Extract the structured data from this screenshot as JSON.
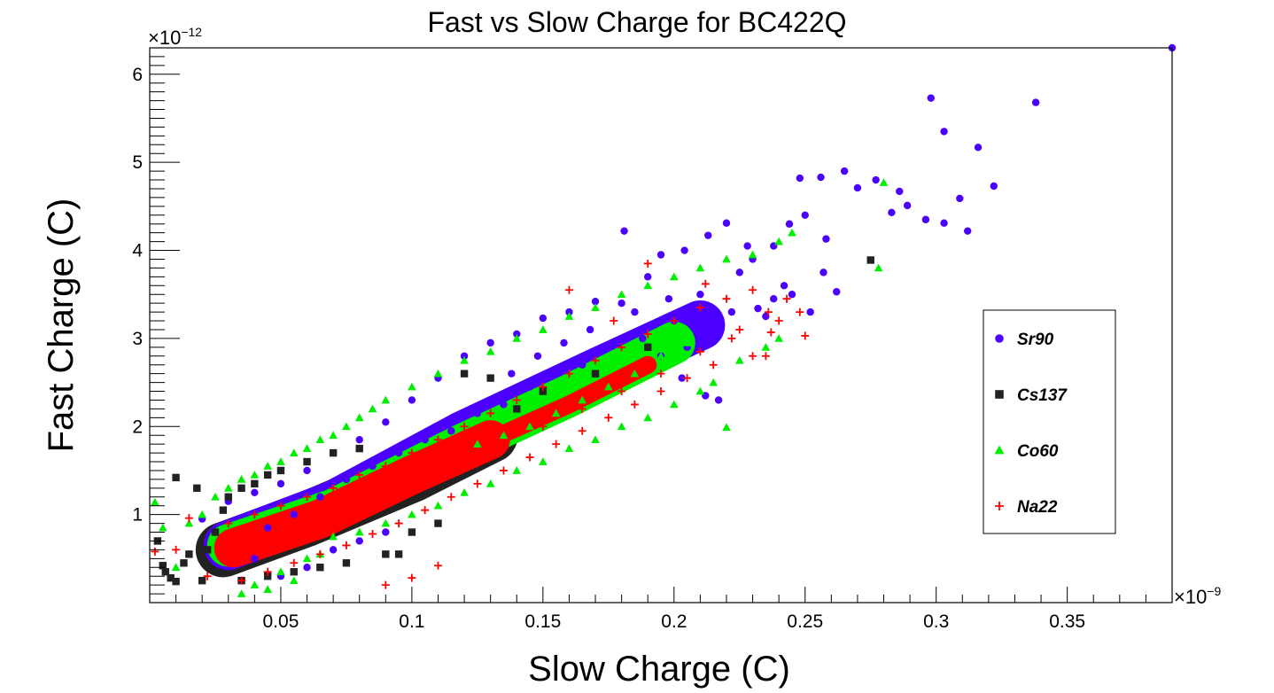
{
  "chart_data": {
    "type": "scatter",
    "title": "Fast vs Slow Charge for BC422Q",
    "xlabel": "Slow Charge (C)",
    "ylabel": "Fast Charge (C)",
    "x_multiplier": "×10",
    "x_exponent": "−9",
    "y_multiplier": "×10",
    "y_exponent": "−12",
    "xlim": [
      0,
      0.39
    ],
    "ylim": [
      0,
      6.3
    ],
    "x_ticks": [
      0.05,
      0.1,
      0.15,
      0.2,
      0.25,
      0.3,
      0.35
    ],
    "x_tick_labels": [
      "0.05",
      "0.1",
      "0.15",
      "0.2",
      "0.25",
      "0.3",
      "0.35"
    ],
    "y_ticks": [
      1,
      2,
      3,
      4,
      5,
      6
    ],
    "y_tick_labels": [
      "1",
      "2",
      "3",
      "4",
      "5",
      "6"
    ],
    "grid": false,
    "legend_position": "right",
    "series": [
      {
        "name": "Sr90",
        "marker": "circle",
        "color": "#4B00FF",
        "points": [
          [
            0.39,
            6.3
          ],
          [
            0.298,
            5.73
          ],
          [
            0.338,
            5.68
          ],
          [
            0.303,
            5.35
          ],
          [
            0.316,
            5.17
          ],
          [
            0.322,
            4.73
          ],
          [
            0.309,
            4.59
          ],
          [
            0.265,
            4.9
          ],
          [
            0.256,
            4.83
          ],
          [
            0.248,
            4.82
          ],
          [
            0.27,
            4.71
          ],
          [
            0.277,
            4.8
          ],
          [
            0.286,
            4.67
          ],
          [
            0.283,
            4.43
          ],
          [
            0.289,
            4.51
          ],
          [
            0.296,
            4.35
          ],
          [
            0.303,
            4.31
          ],
          [
            0.312,
            4.22
          ],
          [
            0.258,
            4.13
          ],
          [
            0.25,
            4.4
          ],
          [
            0.244,
            4.3
          ],
          [
            0.238,
            4.05
          ],
          [
            0.228,
            4.05
          ],
          [
            0.22,
            4.31
          ],
          [
            0.213,
            4.17
          ],
          [
            0.204,
            4.0
          ],
          [
            0.195,
            3.95
          ],
          [
            0.181,
            4.22
          ],
          [
            0.262,
            3.53
          ],
          [
            0.257,
            3.75
          ],
          [
            0.252,
            3.3
          ],
          [
            0.245,
            3.5
          ],
          [
            0.238,
            3.45
          ],
          [
            0.232,
            3.34
          ],
          [
            0.222,
            3.3
          ],
          [
            0.217,
            2.3
          ],
          [
            0.212,
            2.35
          ],
          [
            0.203,
            2.55
          ],
          [
            0.195,
            2.8
          ],
          [
            0.188,
            3.0
          ],
          [
            0.18,
            3.4
          ],
          [
            0.17,
            3.42
          ],
          [
            0.16,
            3.3
          ],
          [
            0.15,
            3.23
          ],
          [
            0.14,
            3.05
          ],
          [
            0.13,
            2.95
          ],
          [
            0.12,
            2.8
          ],
          [
            0.11,
            2.55
          ],
          [
            0.1,
            2.3
          ],
          [
            0.09,
            2.05
          ],
          [
            0.08,
            1.85
          ],
          [
            0.07,
            1.7
          ],
          [
            0.06,
            1.5
          ],
          [
            0.05,
            1.35
          ],
          [
            0.04,
            1.25
          ],
          [
            0.03,
            1.15
          ],
          [
            0.02,
            0.95
          ],
          [
            0.175,
            2.9
          ],
          [
            0.165,
            2.7
          ],
          [
            0.155,
            2.6
          ],
          [
            0.145,
            2.45
          ],
          [
            0.135,
            2.25
          ],
          [
            0.125,
            2.15
          ],
          [
            0.115,
            1.95
          ],
          [
            0.105,
            1.85
          ],
          [
            0.095,
            1.7
          ],
          [
            0.085,
            1.55
          ],
          [
            0.075,
            1.4
          ],
          [
            0.065,
            1.2
          ],
          [
            0.055,
            1.0
          ],
          [
            0.045,
            0.85
          ],
          [
            0.2,
            3.2
          ],
          [
            0.21,
            3.5
          ],
          [
            0.225,
            3.75
          ],
          [
            0.23,
            3.9
          ],
          [
            0.19,
            3.7
          ],
          [
            0.185,
            3.3
          ],
          [
            0.235,
            3.25
          ],
          [
            0.242,
            3.6
          ],
          [
            0.205,
            2.9
          ],
          [
            0.215,
            3.0
          ],
          [
            0.198,
            3.45
          ],
          [
            0.168,
            3.1
          ],
          [
            0.158,
            2.95
          ],
          [
            0.148,
            2.8
          ],
          [
            0.138,
            2.6
          ],
          [
            0.04,
            0.5
          ],
          [
            0.05,
            0.3
          ],
          [
            0.06,
            0.4
          ],
          [
            0.07,
            0.6
          ],
          [
            0.08,
            0.7
          ],
          [
            0.09,
            0.8
          ]
        ]
      },
      {
        "name": "Cs137",
        "marker": "square",
        "color": "#222222",
        "points": [
          [
            0.275,
            3.89
          ],
          [
            0.003,
            0.7
          ],
          [
            0.005,
            0.42
          ],
          [
            0.006,
            0.35
          ],
          [
            0.008,
            0.28
          ],
          [
            0.01,
            0.24
          ],
          [
            0.01,
            1.42
          ],
          [
            0.013,
            0.45
          ],
          [
            0.015,
            0.55
          ],
          [
            0.018,
            1.3
          ],
          [
            0.02,
            0.25
          ],
          [
            0.022,
            0.6
          ],
          [
            0.025,
            0.8
          ],
          [
            0.028,
            1.05
          ],
          [
            0.03,
            1.2
          ],
          [
            0.035,
            1.3
          ],
          [
            0.04,
            1.35
          ],
          [
            0.045,
            1.45
          ],
          [
            0.05,
            1.5
          ],
          [
            0.06,
            1.6
          ],
          [
            0.07,
            1.7
          ],
          [
            0.08,
            1.75
          ],
          [
            0.09,
            0.55
          ],
          [
            0.095,
            0.55
          ],
          [
            0.075,
            0.45
          ],
          [
            0.065,
            0.4
          ],
          [
            0.055,
            0.35
          ],
          [
            0.045,
            0.3
          ],
          [
            0.035,
            0.25
          ],
          [
            0.12,
            2.6
          ],
          [
            0.13,
            2.55
          ],
          [
            0.11,
            0.9
          ],
          [
            0.1,
            0.8
          ],
          [
            0.14,
            2.2
          ],
          [
            0.15,
            2.4
          ],
          [
            0.17,
            2.6
          ],
          [
            0.19,
            2.9
          ]
        ]
      },
      {
        "name": "Co60",
        "marker": "triangle",
        "color": "#00EE00",
        "points": [
          [
            0.28,
            4.77
          ],
          [
            0.278,
            3.8
          ],
          [
            0.22,
            1.99
          ],
          [
            0.002,
            1.14
          ],
          [
            0.005,
            0.85
          ],
          [
            0.01,
            0.4
          ],
          [
            0.015,
            0.9
          ],
          [
            0.02,
            1.0
          ],
          [
            0.025,
            1.2
          ],
          [
            0.03,
            1.3
          ],
          [
            0.035,
            1.4
          ],
          [
            0.04,
            1.45
          ],
          [
            0.045,
            1.55
          ],
          [
            0.05,
            1.6
          ],
          [
            0.055,
            1.7
          ],
          [
            0.06,
            1.75
          ],
          [
            0.065,
            1.85
          ],
          [
            0.07,
            1.9
          ],
          [
            0.075,
            2.0
          ],
          [
            0.08,
            2.1
          ],
          [
            0.085,
            2.2
          ],
          [
            0.09,
            2.3
          ],
          [
            0.1,
            2.45
          ],
          [
            0.11,
            2.6
          ],
          [
            0.12,
            2.75
          ],
          [
            0.13,
            2.85
          ],
          [
            0.14,
            3.0
          ],
          [
            0.15,
            3.1
          ],
          [
            0.16,
            3.25
          ],
          [
            0.17,
            3.35
          ],
          [
            0.18,
            3.5
          ],
          [
            0.19,
            3.6
          ],
          [
            0.2,
            3.7
          ],
          [
            0.21,
            3.8
          ],
          [
            0.22,
            3.9
          ],
          [
            0.23,
            3.95
          ],
          [
            0.24,
            4.1
          ],
          [
            0.245,
            4.2
          ],
          [
            0.07,
            0.75
          ],
          [
            0.08,
            0.8
          ],
          [
            0.09,
            0.9
          ],
          [
            0.1,
            1.0
          ],
          [
            0.11,
            1.1
          ],
          [
            0.12,
            1.25
          ],
          [
            0.13,
            1.35
          ],
          [
            0.14,
            1.5
          ],
          [
            0.15,
            1.6
          ],
          [
            0.16,
            1.75
          ],
          [
            0.17,
            1.85
          ],
          [
            0.18,
            2.0
          ],
          [
            0.19,
            2.1
          ],
          [
            0.2,
            2.25
          ],
          [
            0.21,
            2.4
          ],
          [
            0.215,
            2.5
          ],
          [
            0.225,
            2.75
          ],
          [
            0.235,
            2.9
          ],
          [
            0.24,
            3.0
          ],
          [
            0.06,
            0.5
          ],
          [
            0.05,
            0.35
          ],
          [
            0.04,
            0.2
          ],
          [
            0.035,
            0.1
          ],
          [
            0.045,
            0.15
          ],
          [
            0.055,
            0.25
          ],
          [
            0.065,
            0.55
          ],
          [
            0.125,
            1.8
          ],
          [
            0.135,
            1.9
          ],
          [
            0.145,
            2.0
          ],
          [
            0.155,
            2.15
          ],
          [
            0.165,
            2.3
          ],
          [
            0.175,
            2.45
          ],
          [
            0.185,
            2.6
          ],
          [
            0.195,
            2.8
          ],
          [
            0.205,
            2.95
          ]
        ]
      },
      {
        "name": "Na22",
        "marker": "plus",
        "color": "#FF0000",
        "points": [
          [
            0.002,
            0.58
          ],
          [
            0.015,
            0.96
          ],
          [
            0.01,
            0.6
          ],
          [
            0.022,
            0.3
          ],
          [
            0.03,
            0.9
          ],
          [
            0.04,
            1.0
          ],
          [
            0.05,
            1.1
          ],
          [
            0.06,
            1.2
          ],
          [
            0.07,
            1.3
          ],
          [
            0.08,
            1.45
          ],
          [
            0.09,
            1.55
          ],
          [
            0.1,
            1.7
          ],
          [
            0.11,
            1.85
          ],
          [
            0.12,
            2.0
          ],
          [
            0.13,
            2.15
          ],
          [
            0.14,
            2.3
          ],
          [
            0.15,
            2.45
          ],
          [
            0.16,
            2.6
          ],
          [
            0.17,
            2.75
          ],
          [
            0.18,
            2.9
          ],
          [
            0.19,
            3.05
          ],
          [
            0.2,
            3.2
          ],
          [
            0.21,
            3.35
          ],
          [
            0.22,
            3.45
          ],
          [
            0.23,
            3.55
          ],
          [
            0.236,
            3.3
          ],
          [
            0.24,
            3.2
          ],
          [
            0.248,
            3.3
          ],
          [
            0.25,
            3.03
          ],
          [
            0.237,
            3.07
          ],
          [
            0.23,
            2.8
          ],
          [
            0.235,
            2.8
          ],
          [
            0.222,
            3.0
          ],
          [
            0.215,
            2.7
          ],
          [
            0.205,
            2.55
          ],
          [
            0.195,
            2.4
          ],
          [
            0.185,
            2.25
          ],
          [
            0.175,
            2.1
          ],
          [
            0.165,
            1.95
          ],
          [
            0.155,
            1.8
          ],
          [
            0.145,
            1.65
          ],
          [
            0.135,
            1.5
          ],
          [
            0.125,
            1.35
          ],
          [
            0.115,
            1.2
          ],
          [
            0.105,
            1.05
          ],
          [
            0.095,
            0.9
          ],
          [
            0.085,
            0.78
          ],
          [
            0.075,
            0.65
          ],
          [
            0.065,
            0.55
          ],
          [
            0.055,
            0.45
          ],
          [
            0.045,
            0.35
          ],
          [
            0.035,
            0.25
          ],
          [
            0.03,
            0.5
          ],
          [
            0.045,
            0.7
          ],
          [
            0.06,
            0.85
          ],
          [
            0.075,
            1.0
          ],
          [
            0.09,
            1.2
          ],
          [
            0.105,
            1.4
          ],
          [
            0.12,
            1.6
          ],
          [
            0.135,
            1.8
          ],
          [
            0.15,
            2.0
          ],
          [
            0.165,
            2.2
          ],
          [
            0.18,
            2.4
          ],
          [
            0.195,
            2.6
          ],
          [
            0.21,
            2.85
          ],
          [
            0.225,
            3.1
          ],
          [
            0.243,
            3.45
          ],
          [
            0.19,
            3.85
          ],
          [
            0.212,
            3.62
          ],
          [
            0.16,
            3.55
          ],
          [
            0.177,
            3.2
          ],
          [
            0.11,
            0.42
          ],
          [
            0.1,
            0.28
          ],
          [
            0.09,
            0.2
          ]
        ]
      }
    ]
  }
}
